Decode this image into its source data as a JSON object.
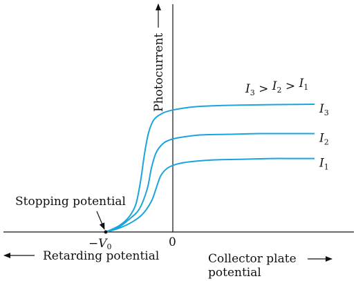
{
  "chart_data": {
    "type": "line",
    "title": "",
    "xlabel_left": "Retarding potential",
    "xlabel_right_line1": "Collector plate",
    "xlabel_right_line2": "potential",
    "ylabel": "Photocurrent",
    "x_origin_label": "0",
    "x_stopping_label": "−V",
    "x_stopping_subscript": "0",
    "annotation_stopping": "Stopping potential",
    "legend_relation": {
      "parts": [
        {
          "letter": "I",
          "sub": "3"
        },
        {
          "letter": "I",
          "sub": "2"
        },
        {
          "letter": "I",
          "sub": "1"
        }
      ],
      "separator": " > "
    },
    "stopping_potential_value": -1,
    "xlim": [
      -1.0,
      2.0
    ],
    "ylim": [
      0,
      1.3
    ],
    "grid": false,
    "series": [
      {
        "name": "I",
        "sub": "3",
        "color": "#1aa3dc",
        "x": [
          -1.0,
          -0.8,
          -0.65,
          -0.55,
          -0.48,
          -0.42,
          -0.36,
          -0.28,
          -0.15,
          0.0,
          0.3,
          0.7,
          1.2,
          1.6,
          2.0
        ],
        "y": [
          0.0,
          0.05,
          0.12,
          0.22,
          0.4,
          0.62,
          0.78,
          0.88,
          0.93,
          0.955,
          0.98,
          0.99,
          0.995,
          0.998,
          1.0
        ]
      },
      {
        "name": "I",
        "sub": "2",
        "color": "#1aa3dc",
        "x": [
          -1.0,
          -0.8,
          -0.65,
          -0.5,
          -0.38,
          -0.32,
          -0.25,
          -0.15,
          -0.05,
          0.1,
          0.4,
          0.8,
          1.2,
          1.6,
          2.0
        ],
        "y": [
          0.0,
          0.04,
          0.1,
          0.18,
          0.34,
          0.5,
          0.62,
          0.69,
          0.72,
          0.74,
          0.76,
          0.765,
          0.77,
          0.77,
          0.77
        ]
      },
      {
        "name": "I",
        "sub": "1",
        "color": "#1aa3dc",
        "x": [
          -1.0,
          -0.8,
          -0.6,
          -0.45,
          -0.32,
          -0.25,
          -0.18,
          -0.08,
          0.05,
          0.25,
          0.6,
          1.0,
          1.4,
          1.7,
          2.0
        ],
        "y": [
          0.0,
          0.03,
          0.08,
          0.14,
          0.24,
          0.34,
          0.44,
          0.5,
          0.53,
          0.55,
          0.565,
          0.57,
          0.575,
          0.575,
          0.575
        ]
      }
    ]
  }
}
